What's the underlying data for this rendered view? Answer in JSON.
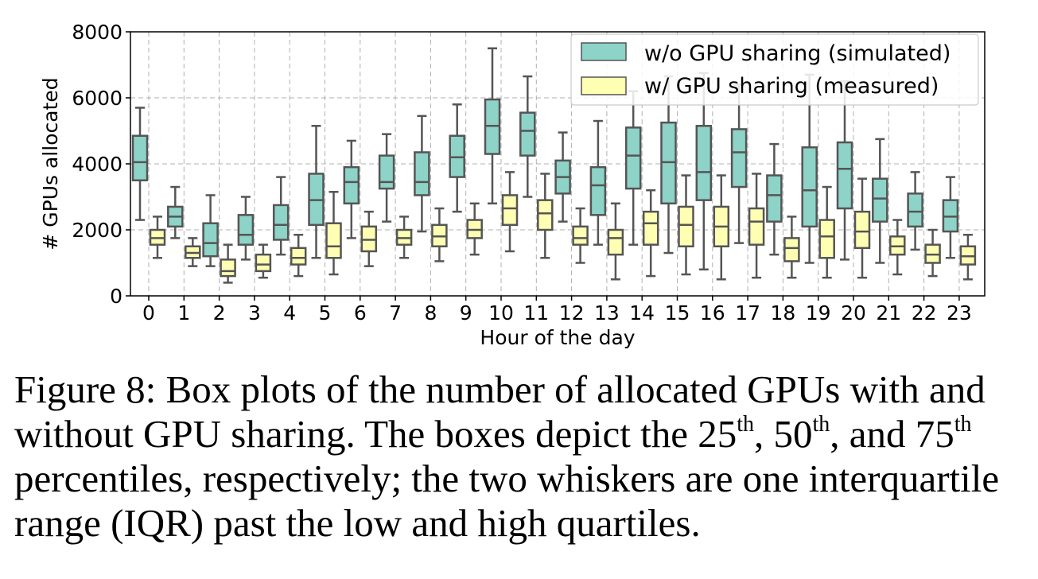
{
  "chart_data": {
    "type": "box",
    "xlabel": "Hour of the day",
    "ylabel": "# GPUs allocated",
    "ylim": [
      0,
      8000
    ],
    "yticks": [
      0,
      2000,
      4000,
      6000,
      8000
    ],
    "grid": true,
    "legend_position": "top-right",
    "categories": [
      "0",
      "1",
      "2",
      "3",
      "4",
      "5",
      "6",
      "7",
      "8",
      "9",
      "10",
      "11",
      "12",
      "13",
      "14",
      "15",
      "16",
      "17",
      "18",
      "19",
      "20",
      "21",
      "22",
      "23"
    ],
    "series": [
      {
        "name": "w/o GPU sharing (simulated)",
        "color": "#8dd3c7",
        "boxes": [
          {
            "low": 2300,
            "q1": 3500,
            "median": 4050,
            "q3": 4850,
            "high": 5700
          },
          {
            "low": 1750,
            "q1": 2100,
            "median": 2400,
            "q3": 2700,
            "high": 3300
          },
          {
            "low": 900,
            "q1": 1200,
            "median": 1600,
            "q3": 2200,
            "high": 3050
          },
          {
            "low": 1100,
            "q1": 1550,
            "median": 1850,
            "q3": 2450,
            "high": 3000
          },
          {
            "low": 1250,
            "q1": 1700,
            "median": 2150,
            "q3": 2750,
            "high": 3600
          },
          {
            "low": 1150,
            "q1": 2150,
            "median": 2900,
            "q3": 3700,
            "high": 5150
          },
          {
            "low": 1750,
            "q1": 2800,
            "median": 3450,
            "q3": 3900,
            "high": 4700
          },
          {
            "low": 2250,
            "q1": 3250,
            "median": 3450,
            "q3": 4250,
            "high": 4900
          },
          {
            "low": 1950,
            "q1": 3050,
            "median": 3450,
            "q3": 4350,
            "high": 5450
          },
          {
            "low": 2550,
            "q1": 3600,
            "median": 4200,
            "q3": 4850,
            "high": 5800
          },
          {
            "low": 2800,
            "q1": 4300,
            "median": 5150,
            "q3": 5950,
            "high": 7500
          },
          {
            "low": 3000,
            "q1": 4250,
            "median": 5000,
            "q3": 5550,
            "high": 6650
          },
          {
            "low": 2250,
            "q1": 3100,
            "median": 3600,
            "q3": 4100,
            "high": 4950
          },
          {
            "low": 1550,
            "q1": 2450,
            "median": 3350,
            "q3": 3900,
            "high": 5300
          },
          {
            "low": 1550,
            "q1": 3250,
            "median": 4250,
            "q3": 5100,
            "high": 6200
          },
          {
            "low": 1300,
            "q1": 2800,
            "median": 4050,
            "q3": 5250,
            "high": 6650
          },
          {
            "low": 800,
            "q1": 2900,
            "median": 3750,
            "q3": 5150,
            "high": 6750
          },
          {
            "low": 1600,
            "q1": 3300,
            "median": 4350,
            "q3": 5050,
            "high": 6400
          },
          {
            "low": 1250,
            "q1": 2250,
            "median": 3050,
            "q3": 3650,
            "high": 4600
          },
          {
            "low": 1000,
            "q1": 2100,
            "median": 3200,
            "q3": 4500,
            "high": 6700
          },
          {
            "low": 1100,
            "q1": 2650,
            "median": 3850,
            "q3": 4650,
            "high": 6500
          },
          {
            "low": 1000,
            "q1": 2250,
            "median": 2950,
            "q3": 3550,
            "high": 4750
          },
          {
            "low": 1400,
            "q1": 2100,
            "median": 2550,
            "q3": 3100,
            "high": 3750
          },
          {
            "low": 1150,
            "q1": 1950,
            "median": 2400,
            "q3": 2900,
            "high": 3600
          }
        ]
      },
      {
        "name": "w/ GPU sharing (measured)",
        "color": "#ffffb3",
        "boxes": [
          {
            "low": 1150,
            "q1": 1550,
            "median": 1750,
            "q3": 2000,
            "high": 2400
          },
          {
            "low": 900,
            "q1": 1150,
            "median": 1300,
            "q3": 1500,
            "high": 1750
          },
          {
            "low": 400,
            "q1": 600,
            "median": 750,
            "q3": 1100,
            "high": 1550
          },
          {
            "low": 550,
            "q1": 750,
            "median": 950,
            "q3": 1250,
            "high": 1550
          },
          {
            "low": 600,
            "q1": 950,
            "median": 1150,
            "q3": 1450,
            "high": 1850
          },
          {
            "low": 650,
            "q1": 1150,
            "median": 1500,
            "q3": 2200,
            "high": 3150
          },
          {
            "low": 900,
            "q1": 1350,
            "median": 1700,
            "q3": 2100,
            "high": 2550
          },
          {
            "low": 1150,
            "q1": 1550,
            "median": 1750,
            "q3": 2000,
            "high": 2400
          },
          {
            "low": 1050,
            "q1": 1500,
            "median": 1800,
            "q3": 2150,
            "high": 2650
          },
          {
            "low": 1250,
            "q1": 1750,
            "median": 2000,
            "q3": 2300,
            "high": 2800
          },
          {
            "low": 1350,
            "q1": 2150,
            "median": 2650,
            "q3": 3050,
            "high": 3750
          },
          {
            "low": 1150,
            "q1": 2000,
            "median": 2500,
            "q3": 2900,
            "high": 3700
          },
          {
            "low": 1000,
            "q1": 1550,
            "median": 1750,
            "q3": 2100,
            "high": 2650
          },
          {
            "low": 500,
            "q1": 1250,
            "median": 1750,
            "q3": 2000,
            "high": 2800
          },
          {
            "low": 600,
            "q1": 1550,
            "median": 2200,
            "q3": 2550,
            "high": 3200
          },
          {
            "low": 650,
            "q1": 1500,
            "median": 2150,
            "q3": 2700,
            "high": 3650
          },
          {
            "low": 500,
            "q1": 1500,
            "median": 2100,
            "q3": 2700,
            "high": 3650
          },
          {
            "low": 550,
            "q1": 1550,
            "median": 2250,
            "q3": 2650,
            "high": 3700
          },
          {
            "low": 550,
            "q1": 1050,
            "median": 1450,
            "q3": 1750,
            "high": 2400
          },
          {
            "low": 550,
            "q1": 1150,
            "median": 1800,
            "q3": 2300,
            "high": 3300
          },
          {
            "low": 550,
            "q1": 1450,
            "median": 1950,
            "q3": 2550,
            "high": 3550
          },
          {
            "low": 650,
            "q1": 1250,
            "median": 1500,
            "q3": 1800,
            "high": 2300
          },
          {
            "low": 600,
            "q1": 1000,
            "median": 1250,
            "q3": 1550,
            "high": 2000
          },
          {
            "low": 500,
            "q1": 950,
            "median": 1200,
            "q3": 1500,
            "high": 1850
          }
        ]
      }
    ]
  },
  "caption": {
    "p1": "Figure 8: Box plots of the number of allocated GPUs with and without GPU sharing. The boxes depict the 25",
    "sup1": "th",
    "p2": ", 50",
    "sup2": "th",
    "p3": ", and 75",
    "sup3": "th",
    "p4": " percentiles, respectively; the two whiskers are one interquartile range (IQR) past the low and high quartiles."
  }
}
